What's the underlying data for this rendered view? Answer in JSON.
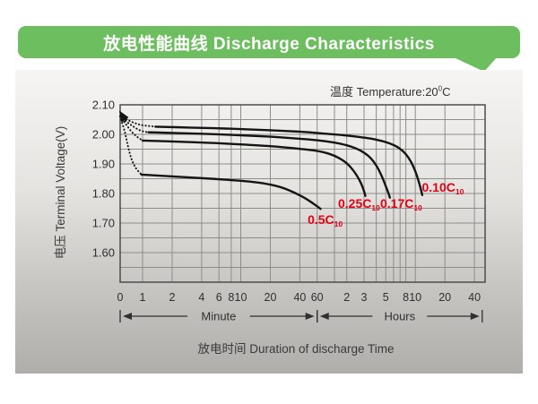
{
  "header": {
    "title": "放电性能曲线 Discharge Characteristics"
  },
  "temperature": {
    "text": "温度  Temperature:20",
    "degree": "0",
    "unit": "C"
  },
  "colors": {
    "banner_green": "#6cbe5f",
    "panel_top": "#f6f5f3",
    "panel_bottom": "#b0aeab",
    "curve": "#141414",
    "label_red": "#e60014",
    "grid": "#8d8d8b",
    "border": "#4c4c4a",
    "text": "#2f2f2f"
  },
  "chart_data": {
    "type": "line",
    "title": "放电性能曲线 Discharge Characteristics",
    "subtitle": "温度 Temperature:20°C",
    "xlabel": "放电时间  Duration of discharge Time",
    "ylabel": "电压 Terminal Voltage(V)",
    "y_axis": {
      "min": 1.5,
      "max": 2.1,
      "grid_step": 0.05,
      "ticks": [
        {
          "label": "2.10",
          "v": 2.1
        },
        {
          "label": "2.00",
          "v": 2.0
        },
        {
          "label": "1.90",
          "v": 1.9
        },
        {
          "label": "1.80",
          "v": 1.8
        },
        {
          "label": "1.70",
          "v": 1.7
        },
        {
          "label": "1.60",
          "v": 1.6
        }
      ]
    },
    "x_axis": {
      "scale": "logarithmic, time in minutes; 0 at axis origin",
      "ticks": [
        {
          "label": "0",
          "t": 0
        },
        {
          "label": "1",
          "t": 1
        },
        {
          "label": "2",
          "t": 2
        },
        {
          "label": "4",
          "t": 4
        },
        {
          "label": "6",
          "t": 6
        },
        {
          "label": "8",
          "t": 8
        },
        {
          "label": "10",
          "t": 10
        },
        {
          "label": "20",
          "t": 20
        },
        {
          "label": "40",
          "t": 40
        },
        {
          "label": "60",
          "t": 60
        },
        {
          "label": "2",
          "t": 120
        },
        {
          "label": "3",
          "t": 180
        },
        {
          "label": "5",
          "t": 300
        },
        {
          "label": "8",
          "t": 480
        },
        {
          "label": "10",
          "t": 600
        },
        {
          "label": "20",
          "t": 1200
        },
        {
          "label": "40",
          "t": 2400
        }
      ],
      "grid_t": [
        1,
        2,
        4,
        6,
        8,
        10,
        20,
        40,
        60,
        90,
        120,
        180,
        240,
        300,
        360,
        420,
        480,
        600,
        1200,
        2400
      ],
      "ranges": [
        {
          "label": "Minute",
          "from_t": 0,
          "to_t": 60
        },
        {
          "label": "Hours",
          "from_t": 60,
          "to_t": 2880
        }
      ]
    },
    "series": [
      {
        "name": "0.10C10",
        "label": "0.10C",
        "label_sub": "10",
        "lead_dotted": [
          [
            0,
            2.061
          ],
          [
            0.35,
            2.048
          ],
          [
            0.7,
            2.037
          ],
          [
            1.0,
            2.031
          ],
          [
            1.35,
            2.026
          ]
        ],
        "points": [
          [
            1.35,
            2.026
          ],
          [
            3,
            2.023
          ],
          [
            8,
            2.019
          ],
          [
            20,
            2.014
          ],
          [
            40,
            2.009
          ],
          [
            60,
            2.005
          ],
          [
            120,
            1.996
          ],
          [
            180,
            1.989
          ],
          [
            240,
            1.982
          ],
          [
            300,
            1.974
          ],
          [
            360,
            1.964
          ],
          [
            420,
            1.951
          ],
          [
            480,
            1.933
          ],
          [
            540,
            1.908
          ],
          [
            600,
            1.875
          ],
          [
            650,
            1.84
          ],
          [
            690,
            1.808
          ],
          [
            705,
            1.795
          ]
        ],
        "label_anchor": {
          "t": 700,
          "v": 1.806
        }
      },
      {
        "name": "0.17C10",
        "label": "0.17C",
        "label_sub": "10",
        "lead_dotted": [
          [
            0,
            2.061
          ],
          [
            0.3,
            2.042
          ],
          [
            0.6,
            2.026
          ],
          [
            0.9,
            2.013
          ],
          [
            1.15,
            2.007
          ]
        ],
        "points": [
          [
            1.15,
            2.007
          ],
          [
            2,
            2.005
          ],
          [
            5,
            2.001
          ],
          [
            10,
            1.997
          ],
          [
            20,
            1.992
          ],
          [
            40,
            1.985
          ],
          [
            60,
            1.98
          ],
          [
            90,
            1.972
          ],
          [
            120,
            1.963
          ],
          [
            150,
            1.952
          ],
          [
            180,
            1.938
          ],
          [
            210,
            1.92
          ],
          [
            240,
            1.895
          ],
          [
            270,
            1.862
          ],
          [
            300,
            1.825
          ],
          [
            320,
            1.8
          ],
          [
            330,
            1.786
          ]
        ],
        "label_anchor": {
          "t": 263,
          "v": 1.752
        }
      },
      {
        "name": "0.25C10",
        "label": "0.25C",
        "label_sub": "10",
        "lead_dotted": [
          [
            0,
            2.061
          ],
          [
            0.25,
            2.035
          ],
          [
            0.5,
            2.01
          ],
          [
            0.75,
            1.992
          ],
          [
            1.0,
            1.979
          ]
        ],
        "points": [
          [
            1.0,
            1.979
          ],
          [
            2,
            1.976
          ],
          [
            5,
            1.971
          ],
          [
            10,
            1.966
          ],
          [
            20,
            1.96
          ],
          [
            40,
            1.951
          ],
          [
            60,
            1.944
          ],
          [
            80,
            1.934
          ],
          [
            100,
            1.92
          ],
          [
            120,
            1.902
          ],
          [
            140,
            1.878
          ],
          [
            160,
            1.848
          ],
          [
            175,
            1.82
          ],
          [
            186,
            1.792
          ]
        ],
        "label_anchor": {
          "t": 98,
          "v": 1.752
        }
      },
      {
        "name": "0.5C10",
        "label": "0.5C",
        "label_sub": "10",
        "lead_dotted": [
          [
            0,
            2.061
          ],
          [
            0.2,
            2.01
          ],
          [
            0.35,
            1.96
          ],
          [
            0.5,
            1.918
          ],
          [
            0.7,
            1.886
          ],
          [
            0.95,
            1.864
          ]
        ],
        "points": [
          [
            0.95,
            1.864
          ],
          [
            2,
            1.858
          ],
          [
            5,
            1.85
          ],
          [
            10,
            1.843
          ],
          [
            15,
            1.837
          ],
          [
            20,
            1.83
          ],
          [
            25,
            1.822
          ],
          [
            30,
            1.813
          ],
          [
            35,
            1.803
          ],
          [
            42,
            1.79
          ],
          [
            50,
            1.775
          ],
          [
            58,
            1.76
          ],
          [
            65,
            1.748
          ]
        ],
        "label_anchor": {
          "t": 48,
          "v": 1.697
        }
      }
    ]
  }
}
